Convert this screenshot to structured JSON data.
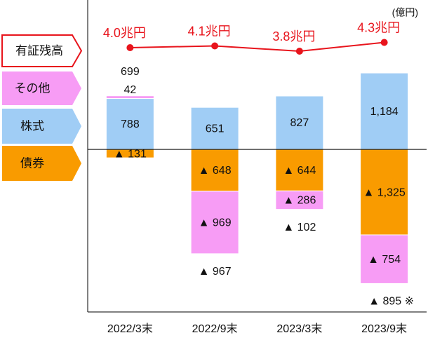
{
  "chart_data": {
    "type": "bar",
    "unit_label": "(億円)",
    "categories": [
      "2022/3末",
      "2022/9末",
      "2023/3末",
      "2023/9末"
    ],
    "ylim": [
      -2520,
      2315
    ],
    "y2lim": [
      -11.08,
      6.72
    ],
    "series": [
      {
        "name": "有証残高",
        "type": "line",
        "axis": "y2",
        "color": "#e8141c",
        "values": [
          4.0,
          4.1,
          3.8,
          4.3
        ],
        "value_labels": [
          "4.0兆円",
          "4.1兆円",
          "3.8兆円",
          "4.3兆円"
        ]
      },
      {
        "name": "その他",
        "color": "#f79cf5",
        "values": [
          42,
          -969,
          -286,
          -754
        ],
        "value_labels": [
          "42",
          "▲ 969",
          "▲ 286",
          "▲ 754"
        ]
      },
      {
        "name": "株式",
        "color": "#a0cdf5",
        "values": [
          788,
          651,
          827,
          1184
        ],
        "value_labels": [
          "788",
          "651",
          "827",
          "1,184"
        ]
      },
      {
        "name": "債券",
        "color": "#f99b00",
        "values": [
          -131,
          -648,
          -644,
          -1325
        ],
        "value_labels": [
          "▲ 131",
          "▲ 648",
          "▲ 644",
          "▲ 1,325"
        ]
      }
    ],
    "totals": [
      699,
      -967,
      -102,
      -895
    ],
    "total_labels": [
      "699",
      "▲ 967",
      "▲ 102",
      "▲ 895 ※"
    ]
  }
}
